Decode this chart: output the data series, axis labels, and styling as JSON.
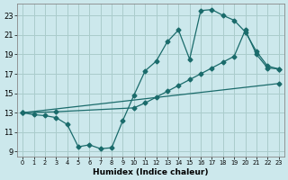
{
  "xlabel": "Humidex (Indice chaleur)",
  "background_color": "#cce8ec",
  "grid_color": "#aacccc",
  "line_color": "#1a6b6b",
  "xlim": [
    -0.5,
    23.5
  ],
  "ylim": [
    8.5,
    24.2
  ],
  "xticks": [
    0,
    1,
    2,
    3,
    4,
    5,
    6,
    7,
    8,
    9,
    10,
    11,
    12,
    13,
    14,
    15,
    16,
    17,
    18,
    19,
    20,
    21,
    22,
    23
  ],
  "yticks": [
    9,
    11,
    13,
    15,
    17,
    19,
    21,
    23
  ],
  "curve1_x": [
    0,
    1,
    2,
    3,
    4,
    5,
    6,
    7,
    8,
    9,
    10,
    11,
    12,
    13,
    14,
    15,
    16,
    17,
    18,
    19,
    20,
    21,
    22,
    23
  ],
  "curve1_y": [
    13,
    12.8,
    12.7,
    12.5,
    11.8,
    9.5,
    9.7,
    9.3,
    9.4,
    12.2,
    14.8,
    17.3,
    18.3,
    20.3,
    21.5,
    18.5,
    23.5,
    23.6,
    23.0,
    22.5,
    21.3,
    19.3,
    17.8,
    17.5
  ],
  "curve2_x": [
    0,
    3,
    10,
    11,
    12,
    13,
    14,
    15,
    16,
    17,
    18,
    19,
    20,
    21,
    22,
    23
  ],
  "curve2_y": [
    13,
    13.1,
    13.5,
    14.0,
    14.6,
    15.2,
    15.8,
    16.4,
    17.0,
    17.6,
    18.2,
    18.8,
    21.5,
    19.0,
    17.6,
    17.5
  ],
  "curve3_x": [
    0,
    23
  ],
  "curve3_y": [
    13,
    16.0
  ]
}
